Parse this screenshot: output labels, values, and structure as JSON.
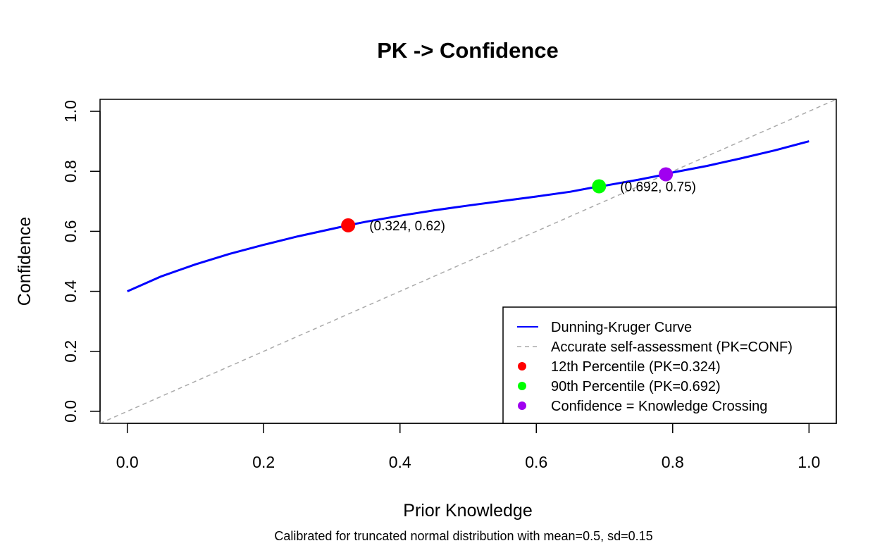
{
  "chart_data": {
    "type": "line",
    "title": "PK -> Confidence",
    "xlabel": "Prior Knowledge",
    "ylabel": "Confidence",
    "subtitle": "Calibrated for truncated normal distribution with mean=0.5, sd=0.15",
    "xlim": [
      -0.04,
      1.04
    ],
    "ylim": [
      -0.04,
      1.04
    ],
    "x_ticks": [
      0.0,
      0.2,
      0.4,
      0.6,
      0.8,
      1.0
    ],
    "x_tick_labels": [
      "0.0",
      "0.2",
      "0.4",
      "0.6",
      "0.8",
      "1.0"
    ],
    "y_ticks": [
      0.0,
      0.2,
      0.4,
      0.6,
      0.8,
      1.0
    ],
    "y_tick_labels": [
      "0.0",
      "0.2",
      "0.4",
      "0.6",
      "0.8",
      "1.0"
    ],
    "grid": false,
    "legend_position": "bottom-right",
    "series": [
      {
        "name": "Dunning-Kruger Curve",
        "style": "solid",
        "color": "#0000ff",
        "x": [
          0.0,
          0.05,
          0.1,
          0.15,
          0.2,
          0.25,
          0.3,
          0.324,
          0.35,
          0.4,
          0.45,
          0.5,
          0.55,
          0.6,
          0.65,
          0.692,
          0.7,
          0.75,
          0.79,
          0.8,
          0.85,
          0.9,
          0.95,
          1.0
        ],
        "y": [
          0.4,
          0.45,
          0.49,
          0.525,
          0.555,
          0.583,
          0.608,
          0.62,
          0.632,
          0.652,
          0.67,
          0.686,
          0.701,
          0.716,
          0.732,
          0.75,
          0.752,
          0.772,
          0.79,
          0.796,
          0.818,
          0.843,
          0.87,
          0.9
        ]
      },
      {
        "name": "Accurate self-assessment (PK=CONF)",
        "style": "dashed",
        "color": "#aaaaaa",
        "x": [
          -0.04,
          1.04
        ],
        "y": [
          -0.04,
          1.04
        ]
      }
    ],
    "points": [
      {
        "name": "12th Percentile (PK=0.324)",
        "x": 0.324,
        "y": 0.62,
        "color": "#ff0000",
        "label": "(0.324, 0.62)"
      },
      {
        "name": "90th Percentile (PK=0.692)",
        "x": 0.692,
        "y": 0.75,
        "color": "#00ff00",
        "label": "(0.692, 0.75)"
      },
      {
        "name": "Confidence = Knowledge Crossing",
        "x": 0.79,
        "y": 0.79,
        "color": "#a000f0",
        "label": ""
      }
    ],
    "legend": [
      {
        "label": "Dunning-Kruger Curve",
        "kind": "line",
        "style": "solid",
        "color": "#0000ff"
      },
      {
        "label": "Accurate self-assessment (PK=CONF)",
        "kind": "line",
        "style": "dashed",
        "color": "#aaaaaa"
      },
      {
        "label": "12th Percentile (PK=0.324)",
        "kind": "point",
        "color": "#ff0000"
      },
      {
        "label": "90th Percentile (PK=0.692)",
        "kind": "point",
        "color": "#00ff00"
      },
      {
        "label": "Confidence = Knowledge Crossing",
        "kind": "point",
        "color": "#a000f0"
      }
    ]
  }
}
